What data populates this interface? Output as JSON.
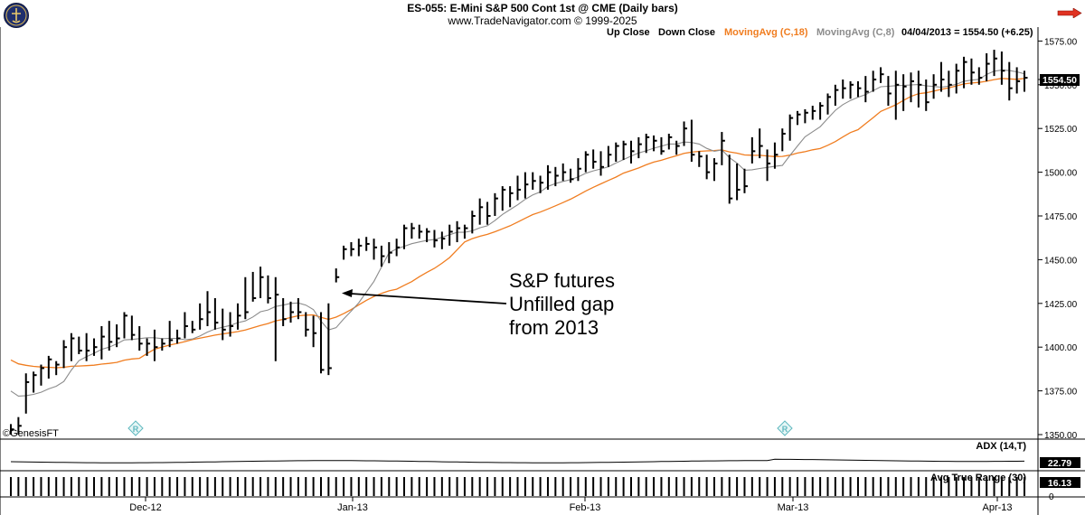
{
  "header": {
    "title": "ES-055:  E-Mini S&P 500 Cont 1st @ CME  (Daily bars)",
    "subtitle": "www.TradeNavigator.com © 1999-2025"
  },
  "legend": {
    "up_close": "Up Close",
    "down_close": "Down Close",
    "ma18": "MovingAvg (C,18)",
    "ma8": "MovingAvg (C,8)",
    "last": "04/04/2013 = 1554.50 (+6.25)"
  },
  "watermark": "©GenesisFT",
  "annotation": {
    "lines": [
      "S&P futures",
      "Unfilled gap",
      "from 2013"
    ]
  },
  "price_tag": "1554.50",
  "colors": {
    "bars": "#000000",
    "ma18": "#f07d20",
    "ma8": "#8c8c8c",
    "arrow": "#000000",
    "tag_bg": "#000000",
    "tag_text": "#ffffff"
  },
  "chart_data": {
    "type": "ohlc",
    "x_labels": [
      "Dec-12",
      "Jan-13",
      "Feb-13",
      "Mar-13",
      "Apr-13"
    ],
    "ylim": [
      1350,
      1580
    ],
    "y_ticks": [
      "1575.00",
      "1550.00",
      "1525.00",
      "1500.00",
      "1475.00",
      "1450.00",
      "1425.00",
      "1400.00",
      "1375.00",
      "1350.00"
    ],
    "bars": [
      [
        1356,
        1350,
        1353
      ],
      [
        1360,
        1350,
        1355
      ],
      [
        1385,
        1362,
        1380
      ],
      [
        1386,
        1374,
        1384
      ],
      [
        1390,
        1378,
        1388
      ],
      [
        1395,
        1382,
        1393
      ],
      [
        1392,
        1384,
        1390
      ],
      [
        1404,
        1388,
        1400
      ],
      [
        1408,
        1392,
        1405
      ],
      [
        1406,
        1396,
        1398
      ],
      [
        1408,
        1392,
        1398
      ],
      [
        1405,
        1395,
        1400
      ],
      [
        1412,
        1393,
        1406
      ],
      [
        1415,
        1398,
        1403
      ],
      [
        1413,
        1400,
        1405
      ],
      [
        1420,
        1405,
        1418
      ],
      [
        1418,
        1404,
        1407
      ],
      [
        1412,
        1398,
        1402
      ],
      [
        1405,
        1395,
        1402
      ],
      [
        1410,
        1392,
        1400
      ],
      [
        1405,
        1398,
        1402
      ],
      [
        1415,
        1400,
        1404
      ],
      [
        1410,
        1402,
        1405
      ],
      [
        1420,
        1405,
        1412
      ],
      [
        1415,
        1408,
        1410
      ],
      [
        1425,
        1410,
        1416
      ],
      [
        1432,
        1412,
        1420
      ],
      [
        1428,
        1410,
        1414
      ],
      [
        1422,
        1404,
        1410
      ],
      [
        1420,
        1406,
        1412
      ],
      [
        1425,
        1410,
        1418
      ],
      [
        1440,
        1416,
        1420
      ],
      [
        1443,
        1426,
        1428
      ],
      [
        1446,
        1428,
        1440
      ],
      [
        1441,
        1425,
        1428
      ],
      [
        1440,
        1392,
        1430
      ],
      [
        1428,
        1412,
        1416
      ],
      [
        1426,
        1414,
        1420
      ],
      [
        1428,
        1416,
        1420
      ],
      [
        1420,
        1406,
        1410
      ],
      [
        1418,
        1400,
        1408
      ],
      [
        1420,
        1385,
        1387
      ],
      [
        1425,
        1384,
        1388
      ],
      [
        1445,
        1437,
        1440
      ],
      [
        1458,
        1450,
        1456
      ],
      [
        1460,
        1452,
        1456
      ],
      [
        1462,
        1452,
        1458
      ],
      [
        1463,
        1455,
        1459
      ],
      [
        1462,
        1450,
        1457
      ],
      [
        1458,
        1446,
        1452
      ],
      [
        1460,
        1448,
        1454
      ],
      [
        1462,
        1452,
        1457
      ],
      [
        1470,
        1456,
        1468
      ],
      [
        1471,
        1462,
        1468
      ],
      [
        1470,
        1462,
        1466
      ],
      [
        1468,
        1460,
        1466
      ],
      [
        1467,
        1457,
        1461
      ],
      [
        1466,
        1456,
        1462
      ],
      [
        1470,
        1458,
        1466
      ],
      [
        1472,
        1460,
        1468
      ],
      [
        1470,
        1462,
        1468
      ],
      [
        1478,
        1465,
        1475
      ],
      [
        1485,
        1470,
        1480
      ],
      [
        1483,
        1470,
        1475
      ],
      [
        1488,
        1475,
        1485
      ],
      [
        1492,
        1478,
        1490
      ],
      [
        1492,
        1480,
        1488
      ],
      [
        1498,
        1484,
        1490
      ],
      [
        1500,
        1485,
        1493
      ],
      [
        1500,
        1490,
        1495
      ],
      [
        1498,
        1488,
        1494
      ],
      [
        1504,
        1490,
        1500
      ],
      [
        1503,
        1492,
        1498
      ],
      [
        1505,
        1495,
        1500
      ],
      [
        1502,
        1494,
        1496
      ],
      [
        1508,
        1495,
        1502
      ],
      [
        1512,
        1500,
        1510
      ],
      [
        1513,
        1502,
        1506
      ],
      [
        1512,
        1498,
        1503
      ],
      [
        1515,
        1503,
        1510
      ],
      [
        1517,
        1506,
        1515
      ],
      [
        1518,
        1507,
        1516
      ],
      [
        1518,
        1505,
        1512
      ],
      [
        1520,
        1508,
        1516
      ],
      [
        1522,
        1511,
        1520
      ],
      [
        1521,
        1512,
        1518
      ],
      [
        1520,
        1510,
        1512
      ],
      [
        1522,
        1513,
        1520
      ],
      [
        1518,
        1510,
        1515
      ],
      [
        1529,
        1515,
        1525
      ],
      [
        1530,
        1506,
        1510
      ],
      [
        1512,
        1503,
        1509
      ],
      [
        1510,
        1496,
        1500
      ],
      [
        1508,
        1495,
        1505
      ],
      [
        1523,
        1504,
        1518
      ],
      [
        1510,
        1482,
        1485
      ],
      [
        1505,
        1484,
        1490
      ],
      [
        1502,
        1488,
        1492
      ],
      [
        1520,
        1505,
        1512
      ],
      [
        1525,
        1508,
        1515
      ],
      [
        1513,
        1495,
        1505
      ],
      [
        1517,
        1502,
        1510
      ],
      [
        1525,
        1512,
        1522
      ],
      [
        1533,
        1518,
        1531
      ],
      [
        1535,
        1527,
        1533
      ],
      [
        1536,
        1528,
        1534
      ],
      [
        1538,
        1530,
        1535
      ],
      [
        1540,
        1530,
        1538
      ],
      [
        1545,
        1533,
        1543
      ],
      [
        1550,
        1538,
        1547
      ],
      [
        1553,
        1542,
        1548
      ],
      [
        1552,
        1542,
        1550
      ],
      [
        1552,
        1543,
        1548
      ],
      [
        1555,
        1540,
        1546
      ],
      [
        1558,
        1546,
        1553
      ],
      [
        1560,
        1551,
        1556
      ],
      [
        1555,
        1538,
        1545
      ],
      [
        1558,
        1530,
        1550
      ],
      [
        1556,
        1535,
        1549
      ],
      [
        1557,
        1540,
        1552
      ],
      [
        1558,
        1537,
        1550
      ],
      [
        1553,
        1535,
        1540
      ],
      [
        1556,
        1542,
        1550
      ],
      [
        1563,
        1546,
        1553
      ],
      [
        1558,
        1543,
        1550
      ],
      [
        1562,
        1545,
        1558
      ],
      [
        1566,
        1548,
        1563
      ],
      [
        1565,
        1550,
        1557
      ],
      [
        1560,
        1550,
        1554
      ],
      [
        1568,
        1552,
        1562
      ],
      [
        1570,
        1555,
        1565
      ],
      [
        1569,
        1550,
        1558
      ],
      [
        1563,
        1541,
        1548
      ],
      [
        1560,
        1545,
        1552
      ],
      [
        1558,
        1546,
        1554
      ]
    ],
    "ma8_start": 1378,
    "ma18_start": 1395,
    "adx": {
      "label": "ADX (14,T)",
      "value": "22.79"
    },
    "atr": {
      "label": "Avg True Range (30)",
      "value": "16.13",
      "tick": "0"
    }
  }
}
